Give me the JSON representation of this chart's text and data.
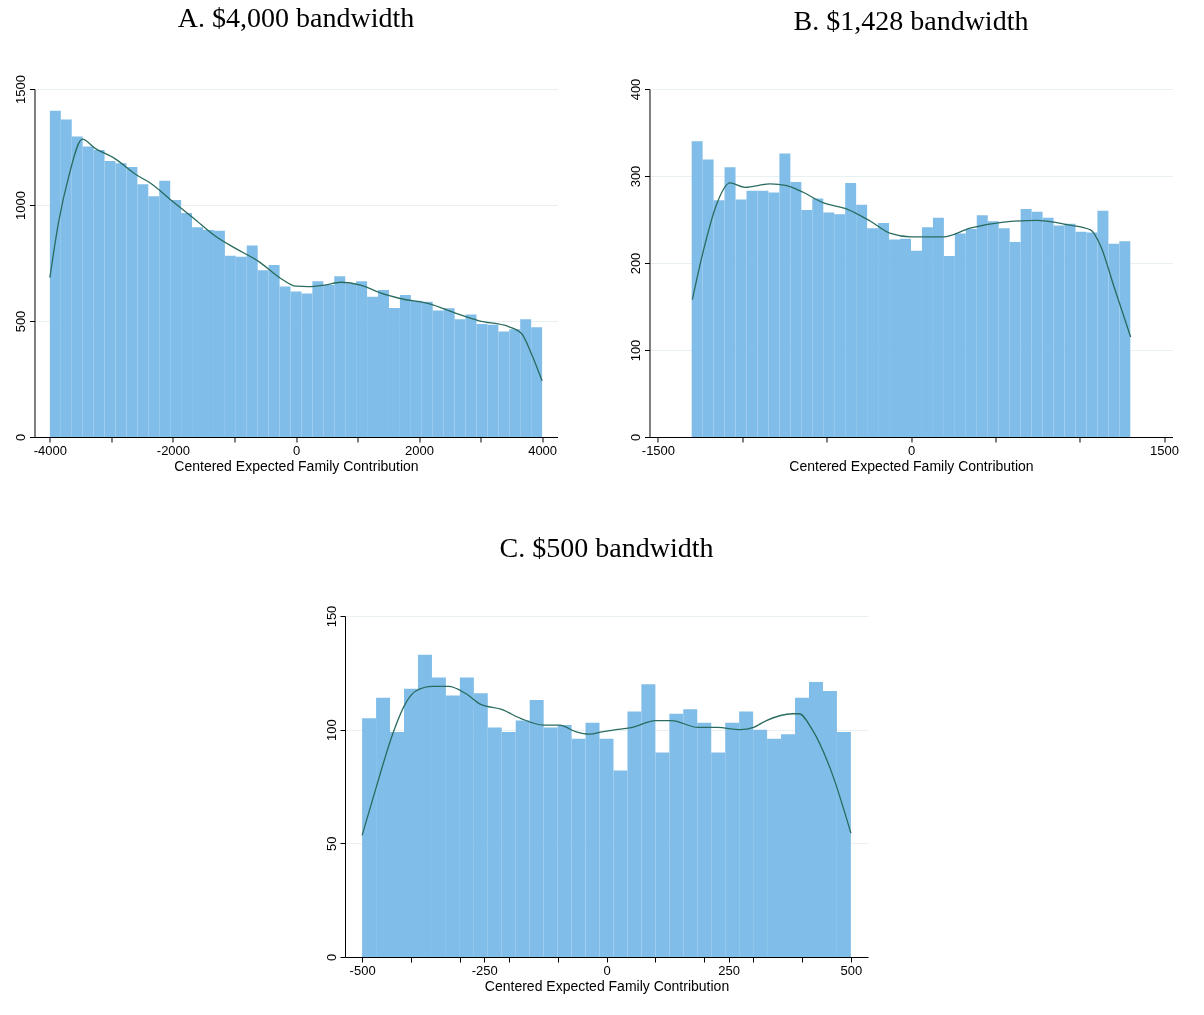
{
  "chart_data": [
    {
      "type": "histogram",
      "title": "A. $4,000 bandwidth",
      "xlabel": "Centered Expected Family Contribution",
      "grid": "y",
      "xlim": [
        -4250,
        4250
      ],
      "ylim": [
        0,
        1500
      ],
      "xticks": [
        -4000,
        {
          "value": -3000,
          "label": null
        },
        -2000,
        {
          "value": -1000,
          "label": null
        },
        0,
        {
          "value": 1000,
          "label": null
        },
        2000,
        {
          "value": 3000,
          "label": null
        },
        4000
      ],
      "yticks": [
        0,
        500,
        1000,
        1500
      ],
      "bins": [
        -4000,
        -3822.2,
        -3644.4,
        -3466.7,
        -3288.9,
        -3111.1,
        -2933.3,
        -2755.6,
        -2577.8,
        -2400,
        -2222.2,
        -2044.4,
        -1866.7,
        -1688.9,
        -1511.1,
        -1333.3,
        -1155.6,
        -977.8,
        -800,
        -622.2,
        -444.4,
        -266.7,
        -88.9,
        88.9,
        266.7,
        444.4,
        622.2,
        800,
        977.8,
        1155.6,
        1333.3,
        1511.1,
        1688.9,
        1866.7,
        2044.4,
        2222.2,
        2400,
        2577.8,
        2755.6,
        2933.3,
        3111.1,
        3288.9,
        3466.7,
        3644.4,
        3822.2,
        4000
      ],
      "series": [
        {
          "color": "#80bde8",
          "values": [
            1406,
            1369,
            1295,
            1252,
            1237,
            1190,
            1180,
            1164,
            1089,
            1038,
            1105,
            1022,
            966,
            904,
            892,
            889,
            781,
            777,
            825,
            719,
            741,
            649,
            627,
            619,
            671,
            655,
            693,
            662,
            671,
            605,
            634,
            556,
            612,
            587,
            583,
            545,
            555,
            508,
            528,
            487,
            484,
            455,
            464,
            508,
            473
          ]
        },
        {
          "type": "line",
          "color": "#2a6b5f",
          "x": [
            -4000,
            -3856,
            -3696,
            -3472,
            -3269,
            -2949,
            -2576,
            -2363,
            -2043,
            -1669,
            -1296,
            -976,
            -603,
            -229,
            0,
            198,
            465,
            732,
            1052,
            1372,
            1693,
            2174,
            2601,
            2975,
            3455,
            3669,
            3829,
            4000
          ],
          "values": [
            687,
            929,
            1120,
            1284,
            1245,
            1201,
            1127,
            1094,
            1024,
            944,
            863,
            812,
            756,
            680,
            650,
            648,
            655,
            667,
            655,
            621,
            597,
            574,
            533,
            501,
            476,
            445,
            357,
            242
          ]
        }
      ]
    },
    {
      "type": "histogram",
      "title": "B. $1,428 bandwidth",
      "xlabel": "Centered Expected Family Contribution",
      "grid": "y",
      "xlim": [
        -1550,
        1550
      ],
      "ylim": [
        0,
        400
      ],
      "xticks": [
        -1500,
        {
          "value": -1000,
          "label": null
        },
        {
          "value": -500,
          "label": null
        },
        0,
        {
          "value": 500,
          "label": null
        },
        {
          "value": 1000,
          "label": null
        },
        1500
      ],
      "yticks": [
        0,
        100,
        200,
        300,
        400
      ],
      "bins": [
        -1300,
        -1235,
        -1170,
        -1105,
        -1040,
        -975,
        -910,
        -845,
        -780,
        -715,
        -650,
        -585,
        -520,
        -455,
        -390,
        -325,
        -260,
        -195,
        -130,
        -65,
        0,
        65,
        130,
        195,
        260,
        325,
        390,
        455,
        520,
        585,
        650,
        715,
        780,
        845,
        910,
        975,
        1040,
        1105,
        1170,
        1235,
        1300
      ],
      "series": [
        {
          "color": "#80bde8",
          "values": [
            340,
            319,
            272,
            310,
            273,
            283,
            283,
            281,
            326,
            293,
            261,
            274,
            258,
            256,
            292,
            267,
            240,
            246,
            227,
            228,
            214,
            241,
            252,
            208,
            234,
            239,
            255,
            248,
            240,
            224,
            262,
            259,
            252,
            243,
            245,
            236,
            235,
            260,
            222,
            225
          ]
        },
        {
          "type": "line",
          "color": "#2a6b5f",
          "x": [
            -1296,
            -1232,
            -1153,
            -1073,
            -984,
            -835,
            -736,
            -637,
            -518,
            -379,
            -240,
            -121,
            0,
            192,
            351,
            549,
            747,
            846,
            925,
            1064,
            1123,
            1203,
            1302
          ],
          "values": [
            158,
            213,
            267,
            292,
            287,
            291,
            289,
            281,
            269,
            262,
            248,
            234,
            230,
            230,
            240,
            247,
            249,
            247,
            244,
            238,
            220,
            173,
            115
          ]
        }
      ]
    },
    {
      "type": "histogram",
      "title": "C. $500 bandwidth",
      "xlabel": "Centered Expected Family Contribution",
      "grid": "y",
      "xlim": [
        -535,
        535
      ],
      "ylim": [
        0,
        150
      ],
      "xticks": [
        -500,
        {
          "value": -400,
          "label": null
        },
        {
          "value": -300,
          "label": null
        },
        -250,
        {
          "value": -200,
          "label": null
        },
        {
          "value": -100,
          "label": null
        },
        0,
        {
          "value": 100,
          "label": null
        },
        {
          "value": 200,
          "label": null
        },
        250,
        {
          "value": 300,
          "label": null
        },
        {
          "value": 400,
          "label": null
        },
        500
      ],
      "yticks": [
        0,
        50,
        100,
        150
      ],
      "bins": [
        -500,
        -471.4,
        -442.9,
        -414.3,
        -385.7,
        -357.1,
        -328.6,
        -300,
        -271.4,
        -242.9,
        -214.3,
        -185.7,
        -157.1,
        -128.6,
        -100,
        -71.4,
        -42.9,
        -14.3,
        14.3,
        42.9,
        71.4,
        100,
        128.6,
        157.1,
        185.7,
        214.3,
        242.9,
        271.4,
        300,
        328.6,
        357.1,
        385.7,
        414.3,
        442.9,
        471.4,
        500
      ],
      "series": [
        {
          "color": "#80bde8",
          "values": [
            105,
            114,
            99,
            118,
            133,
            123,
            115,
            123,
            116,
            101,
            99,
            104,
            113,
            101,
            102,
            96,
            103,
            96,
            82,
            108,
            120,
            90,
            107,
            109,
            103,
            90,
            103,
            108,
            100,
            96,
            98,
            114,
            121,
            117,
            99
          ]
        },
        {
          "type": "line",
          "color": "#2a6b5f",
          "x": [
            -500,
            -470,
            -436,
            -410,
            -390,
            -356,
            -323,
            -289,
            -256,
            -216,
            -176,
            -129,
            -96,
            -62,
            -35,
            -9,
            19,
            53,
            100,
            133,
            187,
            227,
            274,
            301,
            327,
            381,
            394,
            421,
            461,
            500
          ],
          "values": [
            53.5,
            75.5,
            99,
            112,
            117,
            119,
            119,
            116,
            111,
            109,
            105,
            102,
            102,
            99,
            98,
            99,
            100,
            101,
            104,
            104,
            101,
            101,
            100,
            101,
            104,
            107,
            107,
            100,
            81,
            54.5
          ]
        }
      ]
    }
  ]
}
